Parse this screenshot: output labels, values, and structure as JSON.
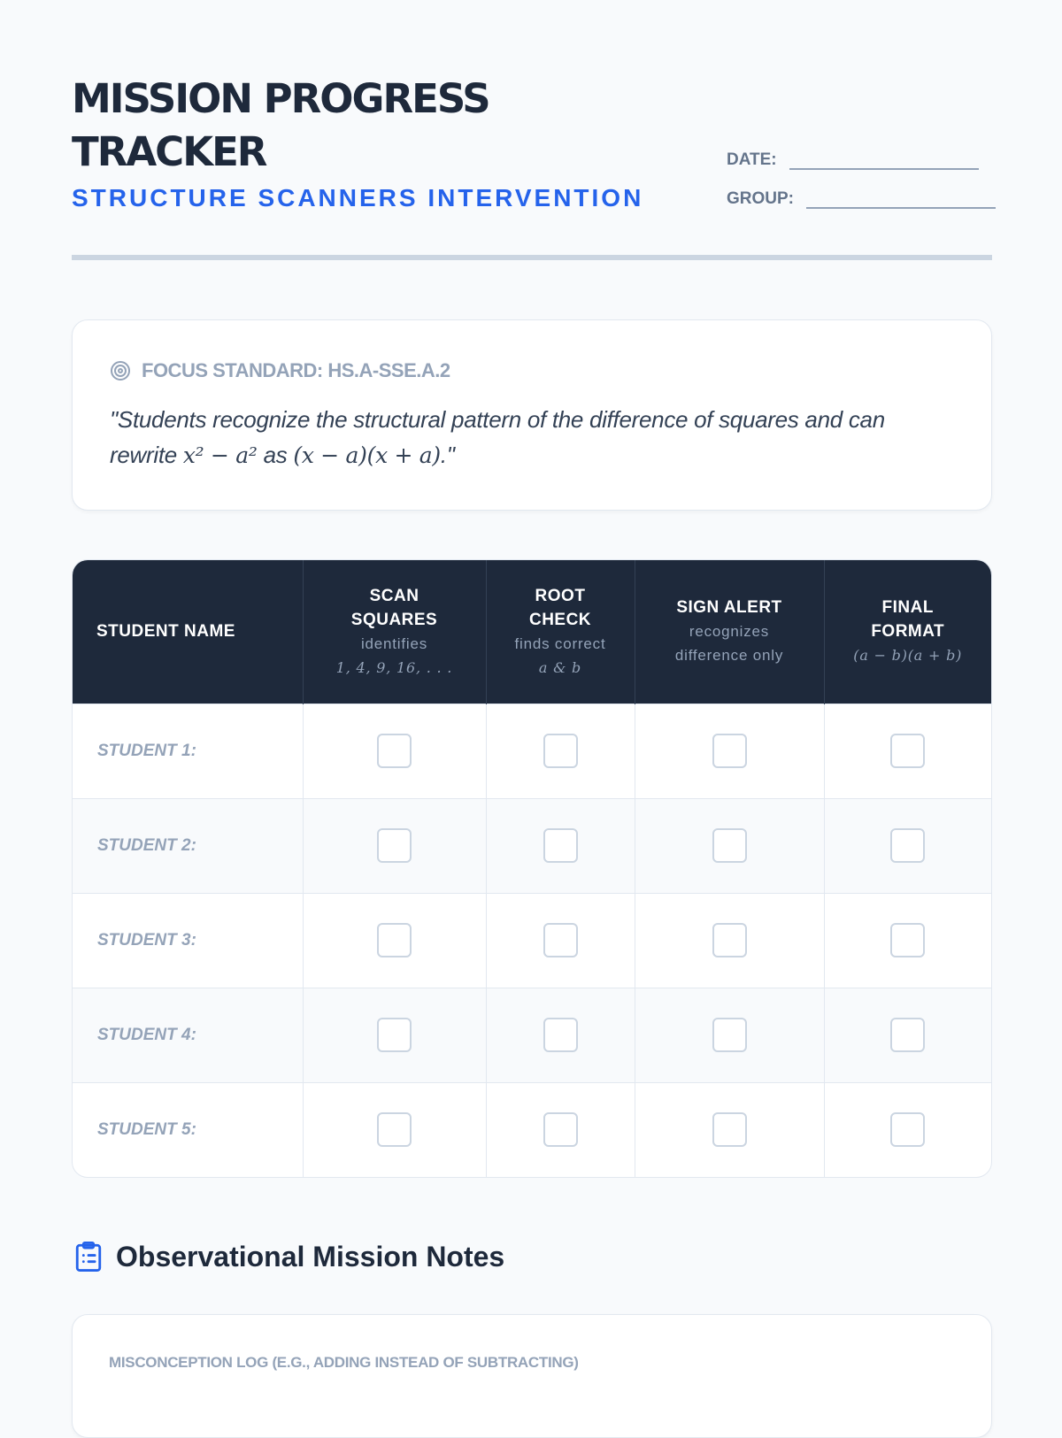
{
  "header": {
    "title_line1": "MISSION PROGRESS",
    "title_line2": "TRACKER",
    "subtitle": "STRUCTURE SCANNERS INTERVENTION",
    "date_label": "DATE:",
    "group_label": "GROUP:"
  },
  "focus": {
    "icon": "target-icon",
    "label": "FOCUS STANDARD: HS.A-SSE.A.2",
    "quote_pre": "\"Students recognize the structural pattern of the difference of squares and can rewrite ",
    "math1": "x² − a²",
    "quote_mid": " as ",
    "math2": "(x − a)(x + a)",
    "quote_post": ".\""
  },
  "table": {
    "columns": [
      {
        "title": "STUDENT NAME"
      },
      {
        "title1": "SCAN",
        "title2": "SQUARES",
        "sub1": "identifies",
        "sub2": "1, 4, 9, 16, . . ."
      },
      {
        "title1": "ROOT",
        "title2": "CHECK",
        "sub1": "finds correct",
        "sub2": "a & b"
      },
      {
        "title1": "SIGN ALERT",
        "sub1": "recognizes",
        "sub2": "difference only"
      },
      {
        "title1": "FINAL",
        "title2": "FORMAT",
        "sub1": "(a − b)(a + b)"
      }
    ],
    "rows": [
      "STUDENT 1:",
      "STUDENT 2:",
      "STUDENT 3:",
      "STUDENT 4:",
      "STUDENT 5:"
    ]
  },
  "notes": {
    "icon": "clipboard-list-icon",
    "heading": "Observational Mission Notes",
    "log_label": "MISCONCEPTION LOG (E.G., ADDING INSTEAD OF SUBTRACTING)"
  },
  "colors": {
    "accent": "#2563eb",
    "header_bg": "#1e293b",
    "muted": "#94a3b8"
  }
}
